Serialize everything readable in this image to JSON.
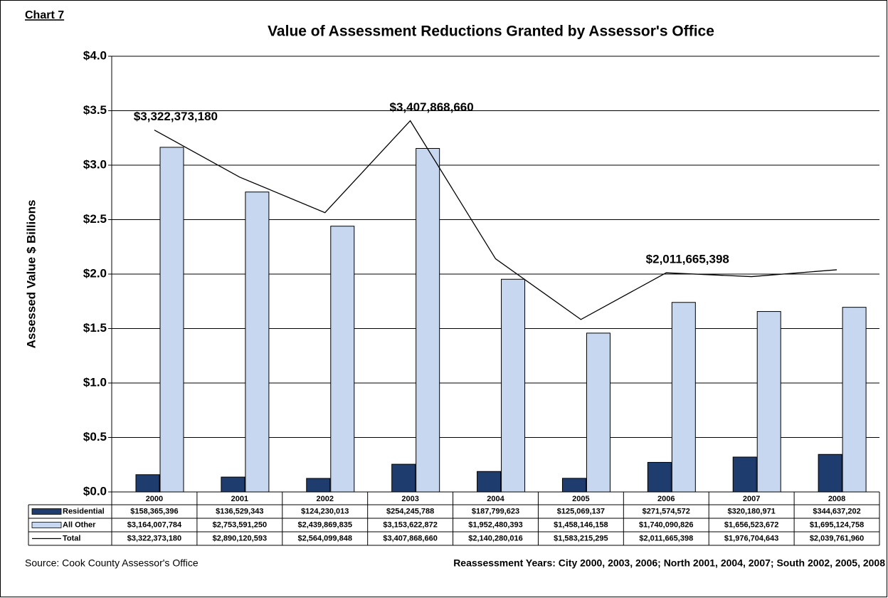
{
  "chart_data": {
    "type": "bar",
    "label": "Chart 7",
    "title": "Value of Assessment Reductions Granted by Assessor's Office",
    "y_label": "Assessed Value $ Billions",
    "categories": [
      "2000",
      "2001",
      "2002",
      "2003",
      "2004",
      "2005",
      "2006",
      "2007",
      "2008"
    ],
    "series": [
      {
        "name": "Residential",
        "color": "#1f3c6e",
        "values": [
          0.158365396,
          0.136529343,
          0.124230013,
          0.254245788,
          0.187799623,
          0.125069137,
          0.271574572,
          0.320180971,
          0.344637202
        ],
        "value_labels": [
          "$158,365,396",
          "$136,529,343",
          "$124,230,013",
          "$254,245,788",
          "$187,799,623",
          "$125,069,137",
          "$271,574,572",
          "$320,180,971",
          "$344,637,202"
        ]
      },
      {
        "name": "All Other",
        "color": "#c6d7ef",
        "values": [
          3.164007784,
          2.75359125,
          2.439869835,
          3.153622872,
          1.952480393,
          1.458146158,
          1.740090826,
          1.656523672,
          1.695124758
        ],
        "value_labels": [
          "$3,164,007,784",
          "$2,753,591,250",
          "$2,439,869,835",
          "$3,153,622,872",
          "$1,952,480,393",
          "$1,458,146,158",
          "$1,740,090,826",
          "$1,656,523,672",
          "$1,695,124,758"
        ]
      },
      {
        "name": "Total",
        "color": "#000000",
        "type": "line",
        "values": [
          3.32237318,
          2.890120593,
          2.564099848,
          3.40786866,
          2.140280016,
          1.583215295,
          2.011665398,
          1.976704643,
          2.03976196
        ],
        "value_labels": [
          "$3,322,373,180",
          "$2,890,120,593",
          "$2,564,099,848",
          "$3,407,868,660",
          "$2,140,280,016",
          "$1,583,215,295",
          "$2,011,665,398",
          "$1,976,704,643",
          "$2,039,761,960"
        ]
      }
    ],
    "annotations": [
      {
        "text": "$3,322,373,180",
        "category": "2000"
      },
      {
        "text": "$3,407,868,660",
        "category": "2003"
      },
      {
        "text": "$2,011,665,398",
        "category": "2006"
      }
    ],
    "ylim": [
      0,
      4
    ],
    "yticks": [
      {
        "value": 0,
        "label": "$0.0"
      },
      {
        "value": 0.5,
        "label": "$0.5"
      },
      {
        "value": 1,
        "label": "$1.0"
      },
      {
        "value": 1.5,
        "label": "$1.5"
      },
      {
        "value": 2,
        "label": "$2.0"
      },
      {
        "value": 2.5,
        "label": "$2.5"
      },
      {
        "value": 3,
        "label": "$3.0"
      },
      {
        "value": 3.5,
        "label": "$3.5"
      },
      {
        "value": 4,
        "label": "$4.0"
      }
    ],
    "grid": true,
    "source": "Source: Cook County Assessor's Office",
    "note": "Reassessment Years: City 2000, 2003, 2006; North 2001, 2004, 2007; South 2002, 2005, 2008"
  }
}
